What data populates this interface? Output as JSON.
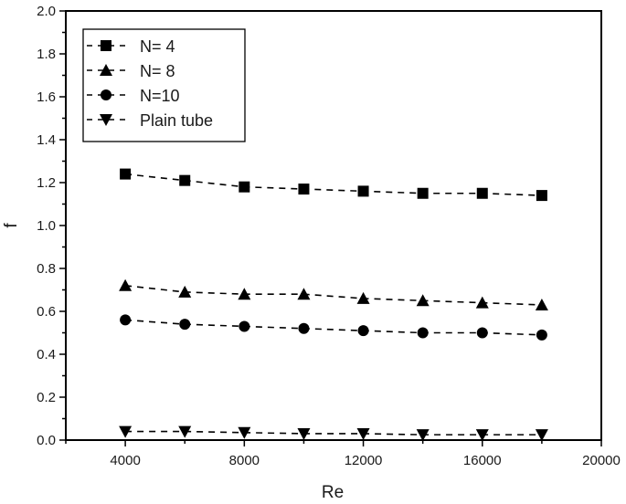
{
  "chart_data": {
    "type": "line",
    "title": "",
    "xlabel": "Re",
    "ylabel": "f",
    "xlim": [
      2000,
      20000
    ],
    "ylim": [
      0.0,
      2.0
    ],
    "x_ticks": [
      4000,
      8000,
      12000,
      16000,
      20000
    ],
    "x_tick_labels": [
      "4000",
      "8000",
      "12000",
      "16000",
      "20000"
    ],
    "y_ticks": [
      0.0,
      0.2,
      0.4,
      0.6,
      0.8,
      1.0,
      1.2,
      1.4,
      1.6,
      1.8,
      2.0
    ],
    "y_tick_labels": [
      "0.0",
      "0.2",
      "0.4",
      "0.6",
      "0.8",
      "1.0",
      "1.2",
      "1.4",
      "1.6",
      "1.8",
      "2.0"
    ],
    "grid": false,
    "legend_position": "upper left",
    "x": [
      4000,
      6000,
      8000,
      10000,
      12000,
      14000,
      16000,
      18000
    ],
    "series": [
      {
        "name": "N= 4",
        "marker": "square",
        "line": "dashed",
        "values": [
          1.24,
          1.21,
          1.18,
          1.17,
          1.16,
          1.15,
          1.15,
          1.14
        ]
      },
      {
        "name": "N= 8",
        "marker": "triangle-up",
        "line": "dashed",
        "values": [
          0.72,
          0.69,
          0.68,
          0.68,
          0.66,
          0.65,
          0.64,
          0.63
        ]
      },
      {
        "name": "N=10",
        "marker": "circle",
        "line": "dashed",
        "values": [
          0.56,
          0.54,
          0.53,
          0.52,
          0.51,
          0.5,
          0.5,
          0.49
        ]
      },
      {
        "name": "Plain tube",
        "marker": "triangle-down",
        "line": "dashed",
        "values": [
          0.04,
          0.04,
          0.035,
          0.03,
          0.03,
          0.025,
          0.025,
          0.025
        ]
      }
    ]
  },
  "colors": {
    "ink": "#000000",
    "background": "#ffffff"
  }
}
